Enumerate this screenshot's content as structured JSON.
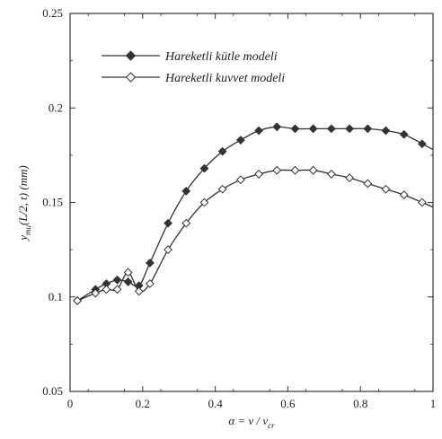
{
  "chart_data": {
    "type": "line",
    "title": "",
    "xlabel": "α = v / v",
    "xlabel_sub": "cr",
    "ylabel": "y",
    "ylabel_sub": "mu",
    "ylabel_rest": "(L/2, t) (mm)",
    "xlim": [
      0,
      1
    ],
    "ylim": [
      0.05,
      0.25
    ],
    "x_ticks": [
      {
        "value": 0,
        "label": "0"
      },
      {
        "value": 0.2,
        "label": "0.2"
      },
      {
        "value": 0.4,
        "label": "0.4"
      },
      {
        "value": 0.6,
        "label": "0.6"
      },
      {
        "value": 0.8,
        "label": "0.8"
      },
      {
        "value": 1.0,
        "label": "1"
      }
    ],
    "y_ticks": [
      {
        "value": 0.05,
        "label": "0.05"
      },
      {
        "value": 0.1,
        "label": "0.1"
      },
      {
        "value": 0.15,
        "label": "0.15"
      },
      {
        "value": 0.2,
        "label": "0.2"
      },
      {
        "value": 0.25,
        "label": "0.25"
      }
    ],
    "grid": false,
    "legend_position": "top-left",
    "series": [
      {
        "name": "Hareketli kütle modeli",
        "marker": "filled-diamond",
        "color": "#333333",
        "x": [
          0.02,
          0.07,
          0.1,
          0.13,
          0.16,
          0.19,
          0.22,
          0.27,
          0.32,
          0.37,
          0.42,
          0.47,
          0.52,
          0.57,
          0.62,
          0.67,
          0.72,
          0.77,
          0.82,
          0.87,
          0.92,
          0.97
        ],
        "y": [
          0.098,
          0.104,
          0.107,
          0.109,
          0.108,
          0.106,
          0.118,
          0.139,
          0.156,
          0.168,
          0.177,
          0.183,
          0.188,
          0.19,
          0.189,
          0.189,
          0.189,
          0.189,
          0.189,
          0.188,
          0.186,
          0.181
        ]
      },
      {
        "name": "Hareketli kuvvet modeli",
        "marker": "open-diamond",
        "color": "#333333",
        "x": [
          0.02,
          0.07,
          0.1,
          0.13,
          0.16,
          0.19,
          0.22,
          0.27,
          0.32,
          0.37,
          0.42,
          0.47,
          0.52,
          0.57,
          0.62,
          0.67,
          0.72,
          0.77,
          0.82,
          0.87,
          0.92,
          0.97
        ],
        "y": [
          0.098,
          0.102,
          0.104,
          0.104,
          0.113,
          0.103,
          0.107,
          0.125,
          0.139,
          0.15,
          0.157,
          0.162,
          0.165,
          0.167,
          0.167,
          0.167,
          0.165,
          0.163,
          0.16,
          0.157,
          0.154,
          0.15
        ]
      }
    ]
  }
}
